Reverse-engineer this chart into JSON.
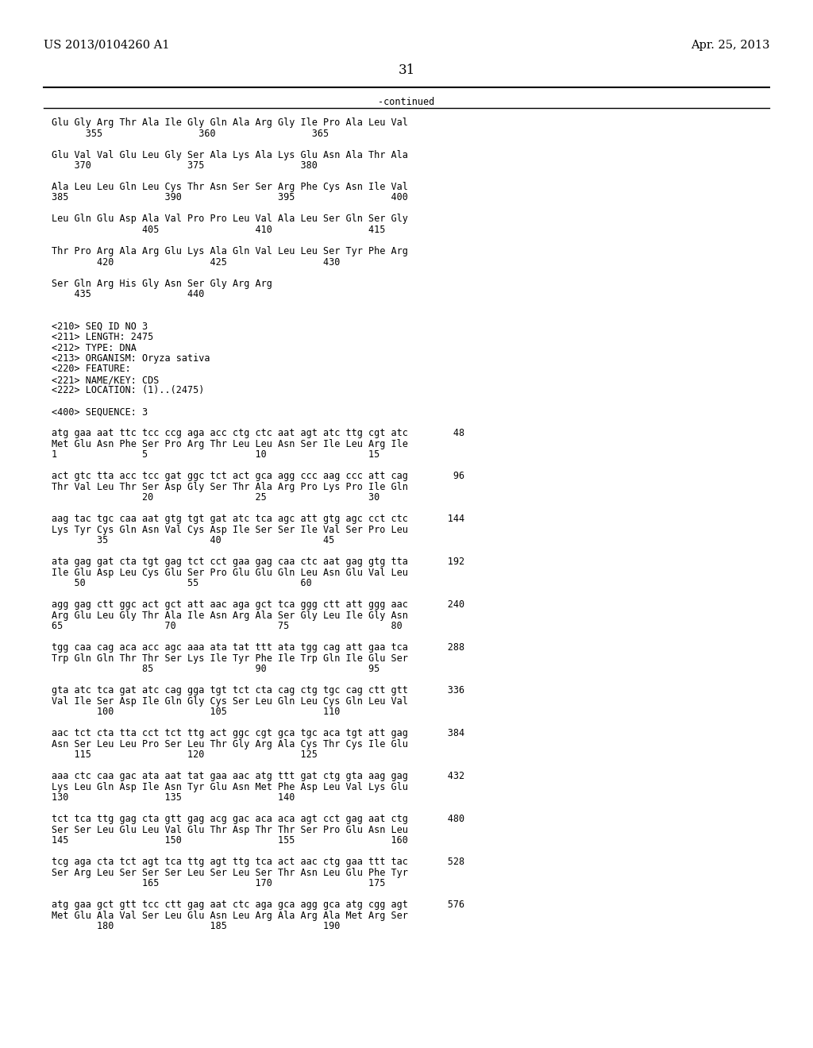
{
  "header_left": "US 2013/0104260 A1",
  "header_right": "Apr. 25, 2013",
  "page_number": "31",
  "continued_label": "-continued",
  "background_color": "#ffffff",
  "text_color": "#000000",
  "font_size_header": 10.5,
  "font_size_body": 8.5,
  "font_size_page": 12,
  "lines": [
    "Glu Gly Arg Thr Ala Ile Gly Gln Ala Arg Gly Ile Pro Ala Leu Val",
    "      355                 360                 365",
    "",
    "Glu Val Val Glu Leu Gly Ser Ala Lys Ala Lys Glu Asn Ala Thr Ala",
    "    370                 375                 380",
    "",
    "Ala Leu Leu Gln Leu Cys Thr Asn Ser Ser Arg Phe Cys Asn Ile Val",
    "385                 390                 395                 400",
    "",
    "Leu Gln Glu Asp Ala Val Pro Pro Leu Val Ala Leu Ser Gln Ser Gly",
    "                405                 410                 415",
    "",
    "Thr Pro Arg Ala Arg Glu Lys Ala Gln Val Leu Leu Ser Tyr Phe Arg",
    "        420                 425                 430",
    "",
    "Ser Gln Arg His Gly Asn Ser Gly Arg Arg",
    "    435                 440",
    "",
    "",
    "<210> SEQ ID NO 3",
    "<211> LENGTH: 2475",
    "<212> TYPE: DNA",
    "<213> ORGANISM: Oryza sativa",
    "<220> FEATURE:",
    "<221> NAME/KEY: CDS",
    "<222> LOCATION: (1)..(2475)",
    "",
    "<400> SEQUENCE: 3",
    "",
    "atg gaa aat ttc tcc ccg aga acc ctg ctc aat agt atc ttg cgt atc        48",
    "Met Glu Asn Phe Ser Pro Arg Thr Leu Leu Asn Ser Ile Leu Arg Ile",
    "1               5                   10                  15",
    "",
    "act gtc tta acc tcc gat ggc tct act gca agg ccc aag ccc att cag        96",
    "Thr Val Leu Thr Ser Asp Gly Ser Thr Ala Arg Pro Lys Pro Ile Gln",
    "                20                  25                  30",
    "",
    "aag tac tgc caa aat gtg tgt gat atc tca agc att gtg agc cct ctc       144",
    "Lys Tyr Cys Gln Asn Val Cys Asp Ile Ser Ser Ile Val Ser Pro Leu",
    "        35                  40                  45",
    "",
    "ata gag gat cta tgt gag tct cct gaa gag caa ctc aat gag gtg tta       192",
    "Ile Glu Asp Leu Cys Glu Ser Pro Glu Glu Gln Leu Asn Glu Val Leu",
    "    50                  55                  60",
    "",
    "agg gag ctt ggc act gct att aac aga gct tca ggg ctt att ggg aac       240",
    "Arg Glu Leu Gly Thr Ala Ile Asn Arg Ala Ser Gly Leu Ile Gly Asn",
    "65                  70                  75                  80",
    "",
    "tgg caa cag aca acc agc aaa ata tat ttt ata tgg cag att gaa tca       288",
    "Trp Gln Gln Thr Thr Ser Lys Ile Tyr Phe Ile Trp Gln Ile Glu Ser",
    "                85                  90                  95",
    "",
    "gta atc tca gat atc cag gga tgt tct cta cag ctg tgc cag ctt gtt       336",
    "Val Ile Ser Asp Ile Gln Gly Cys Ser Leu Gln Leu Cys Gln Leu Val",
    "        100                 105                 110",
    "",
    "aac tct cta tta cct tct ttg act ggc cgt gca tgc aca tgt att gag       384",
    "Asn Ser Leu Leu Pro Ser Leu Thr Gly Arg Ala Cys Thr Cys Ile Glu",
    "    115                 120                 125",
    "",
    "aaa ctc caa gac ata aat tat gaa aac atg ttt gat ctg gta aag gag       432",
    "Lys Leu Gln Asp Ile Asn Tyr Glu Asn Met Phe Asp Leu Val Lys Glu",
    "130                 135                 140",
    "",
    "tct tca ttg gag cta gtt gag acg gac aca aca agt cct gag aat ctg       480",
    "Ser Ser Leu Glu Leu Val Glu Thr Asp Thr Thr Ser Pro Glu Asn Leu",
    "145                 150                 155                 160",
    "",
    "tcg aga cta tct agt tca ttg agt ttg tca act aac ctg gaa ttt tac       528",
    "Ser Arg Leu Ser Ser Ser Leu Ser Leu Ser Thr Asn Leu Glu Phe Tyr",
    "                165                 170                 175",
    "",
    "atg gaa gct gtt tcc ctt gag aat ctc aga gca agg gca atg cgg agt       576",
    "Met Glu Ala Val Ser Leu Glu Asn Leu Arg Ala Arg Ala Met Arg Ser",
    "        180                 185                 190"
  ]
}
